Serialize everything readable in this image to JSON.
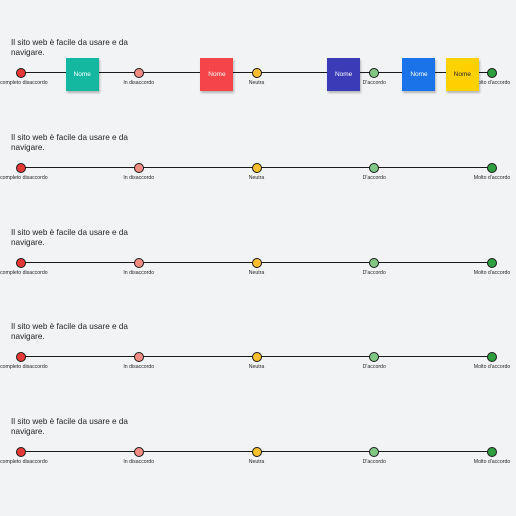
{
  "questions": [
    {
      "text": "Il sito web è facile da usare e da navigare.",
      "points": [
        {
          "label": "In completo disaccordo",
          "color": "#e53935"
        },
        {
          "label": "In disaccordo",
          "color": "#f28b82"
        },
        {
          "label": "Neutra",
          "color": "#fbc02d"
        },
        {
          "label": "D'accordo",
          "color": "#81c784"
        },
        {
          "label": "Molto d'accordo",
          "color": "#2e9e3e"
        }
      ],
      "stickies": [
        {
          "label": "Nome",
          "color": "#14b8a0",
          "position": 0.13
        },
        {
          "label": "Nome",
          "color": "#f5454a",
          "position": 0.416
        },
        {
          "label": "Nome",
          "color": "#3b3bb8",
          "position": 0.685
        },
        {
          "label": "Nome",
          "color": "#1a73e8",
          "position": 0.845
        },
        {
          "label": "Nome",
          "color": "#ffd100",
          "position": 0.937
        }
      ]
    },
    {
      "text": "Il sito web è facile da usare e da navigare.",
      "points": [
        {
          "label": "In completo disaccordo",
          "color": "#e53935"
        },
        {
          "label": "In disaccordo",
          "color": "#f28b82"
        },
        {
          "label": "Neutra",
          "color": "#fbc02d"
        },
        {
          "label": "D'accordo",
          "color": "#81c784"
        },
        {
          "label": "Molto d'accordo",
          "color": "#2e9e3e"
        }
      ],
      "stickies": []
    },
    {
      "text": "Il sito web è facile da usare e da navigare.",
      "points": [
        {
          "label": "In completo disaccordo",
          "color": "#e53935"
        },
        {
          "label": "In disaccordo",
          "color": "#f28b82"
        },
        {
          "label": "Neutra",
          "color": "#fbc02d"
        },
        {
          "label": "D'accordo",
          "color": "#81c784"
        },
        {
          "label": "Molto d'accordo",
          "color": "#2e9e3e"
        }
      ],
      "stickies": []
    },
    {
      "text": "Il sito web è facile da usare e da navigare.",
      "points": [
        {
          "label": "In completo disaccordo",
          "color": "#e53935"
        },
        {
          "label": "In disaccordo",
          "color": "#f28b82"
        },
        {
          "label": "Neutra",
          "color": "#fbc02d"
        },
        {
          "label": "D'accordo",
          "color": "#81c784"
        },
        {
          "label": "Molto d'accordo",
          "color": "#2e9e3e"
        }
      ],
      "stickies": []
    },
    {
      "text": "Il sito web è facile da usare e da navigare.",
      "points": [
        {
          "label": "In completo disaccordo",
          "color": "#e53935"
        },
        {
          "label": "In disaccordo",
          "color": "#f28b82"
        },
        {
          "label": "Neutra",
          "color": "#fbc02d"
        },
        {
          "label": "D'accordo",
          "color": "#81c784"
        },
        {
          "label": "Molto d'accordo",
          "color": "#2e9e3e"
        }
      ],
      "stickies": []
    }
  ]
}
